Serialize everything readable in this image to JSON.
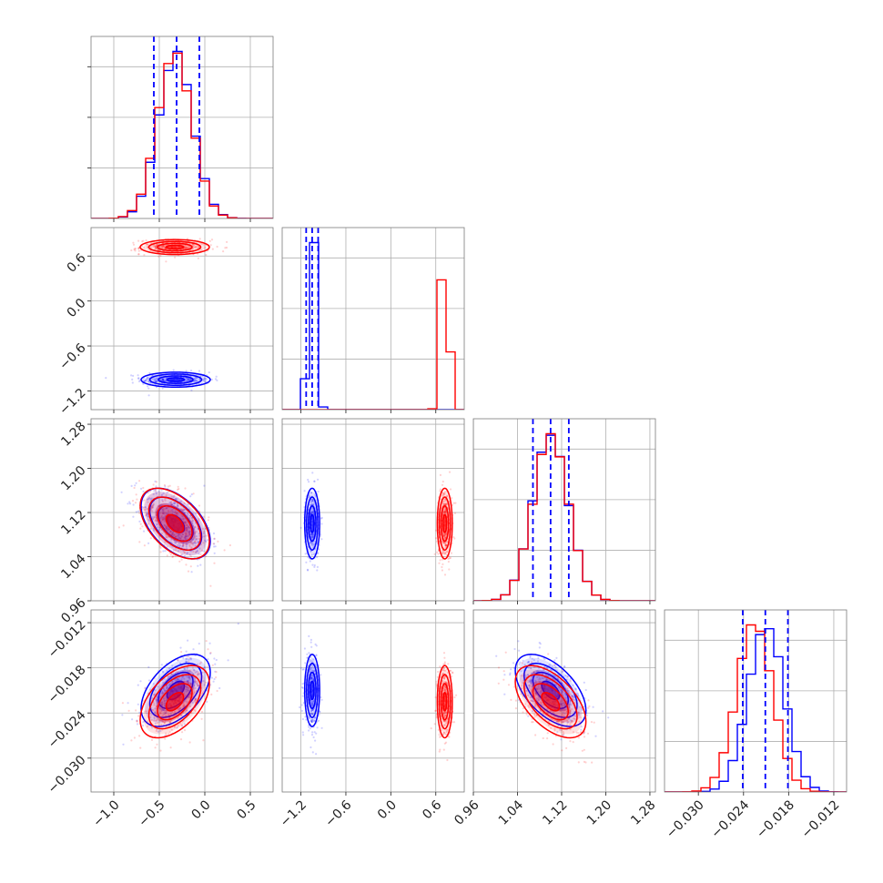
{
  "chart_data": {
    "type": "corner",
    "grid": true,
    "colors": {
      "a": "#ff0000",
      "b": "#0000ff"
    },
    "parameters": [
      {
        "xlim": [
          -1.25,
          0.75
        ],
        "ticks": [
          {
            "v": -1.0,
            "label": "−1.0"
          },
          {
            "v": -0.5,
            "label": "−0.5"
          },
          {
            "v": 0.0,
            "label": "0.0"
          },
          {
            "v": 0.5,
            "label": "0.5"
          }
        ]
      },
      {
        "xlim": [
          -1.45,
          0.98
        ],
        "ticks": [
          {
            "v": -1.2,
            "label": "−1.2"
          },
          {
            "v": -0.6,
            "label": "−0.6"
          },
          {
            "v": 0.0,
            "label": "0.0"
          },
          {
            "v": 0.6,
            "label": "0.6"
          }
        ]
      },
      {
        "xlim": [
          0.96,
          1.29
        ],
        "ticks": [
          {
            "v": 0.96,
            "label": "0.96"
          },
          {
            "v": 1.04,
            "label": "1.04"
          },
          {
            "v": 1.12,
            "label": "1.12"
          },
          {
            "v": 1.2,
            "label": "1.20"
          },
          {
            "v": 1.28,
            "label": "1.28"
          }
        ]
      },
      {
        "xlim": [
          -0.0345,
          -0.0103
        ],
        "ticks": [
          {
            "v": -0.03,
            "label": "−0.030"
          },
          {
            "v": -0.024,
            "label": "−0.024"
          },
          {
            "v": -0.018,
            "label": "−0.018"
          },
          {
            "v": -0.012,
            "label": "−0.012"
          }
        ]
      }
    ],
    "series": [
      {
        "color": "#ff0000",
        "mean": [
          -0.33,
          0.72,
          1.1,
          -0.0225
        ],
        "sd": [
          0.19,
          0.05,
          0.032,
          0.0024
        ],
        "corr": [
          [
            1,
            0,
            -0.5,
            0.5
          ],
          [
            0,
            1,
            0,
            0
          ],
          [
            -0.5,
            0,
            1,
            -0.55
          ],
          [
            0.5,
            0,
            -0.55,
            1
          ]
        ]
      },
      {
        "color": "#0000ff",
        "mean": [
          -0.32,
          -1.05,
          1.1,
          -0.021
        ],
        "sd": [
          0.19,
          0.05,
          0.032,
          0.0024
        ],
        "corr": [
          [
            1,
            0,
            -0.5,
            0.5
          ],
          [
            0,
            1,
            0,
            0
          ],
          [
            -0.5,
            0,
            1,
            -0.55
          ],
          [
            0.5,
            0,
            -0.55,
            1
          ]
        ]
      }
    ],
    "quantiles": [
      [
        -0.56,
        -0.31,
        -0.06
      ],
      [
        -1.13,
        -1.05,
        -0.97
      ],
      [
        1.068,
        1.1,
        1.133
      ],
      [
        -0.0241,
        -0.0211,
        -0.0181
      ]
    ]
  }
}
